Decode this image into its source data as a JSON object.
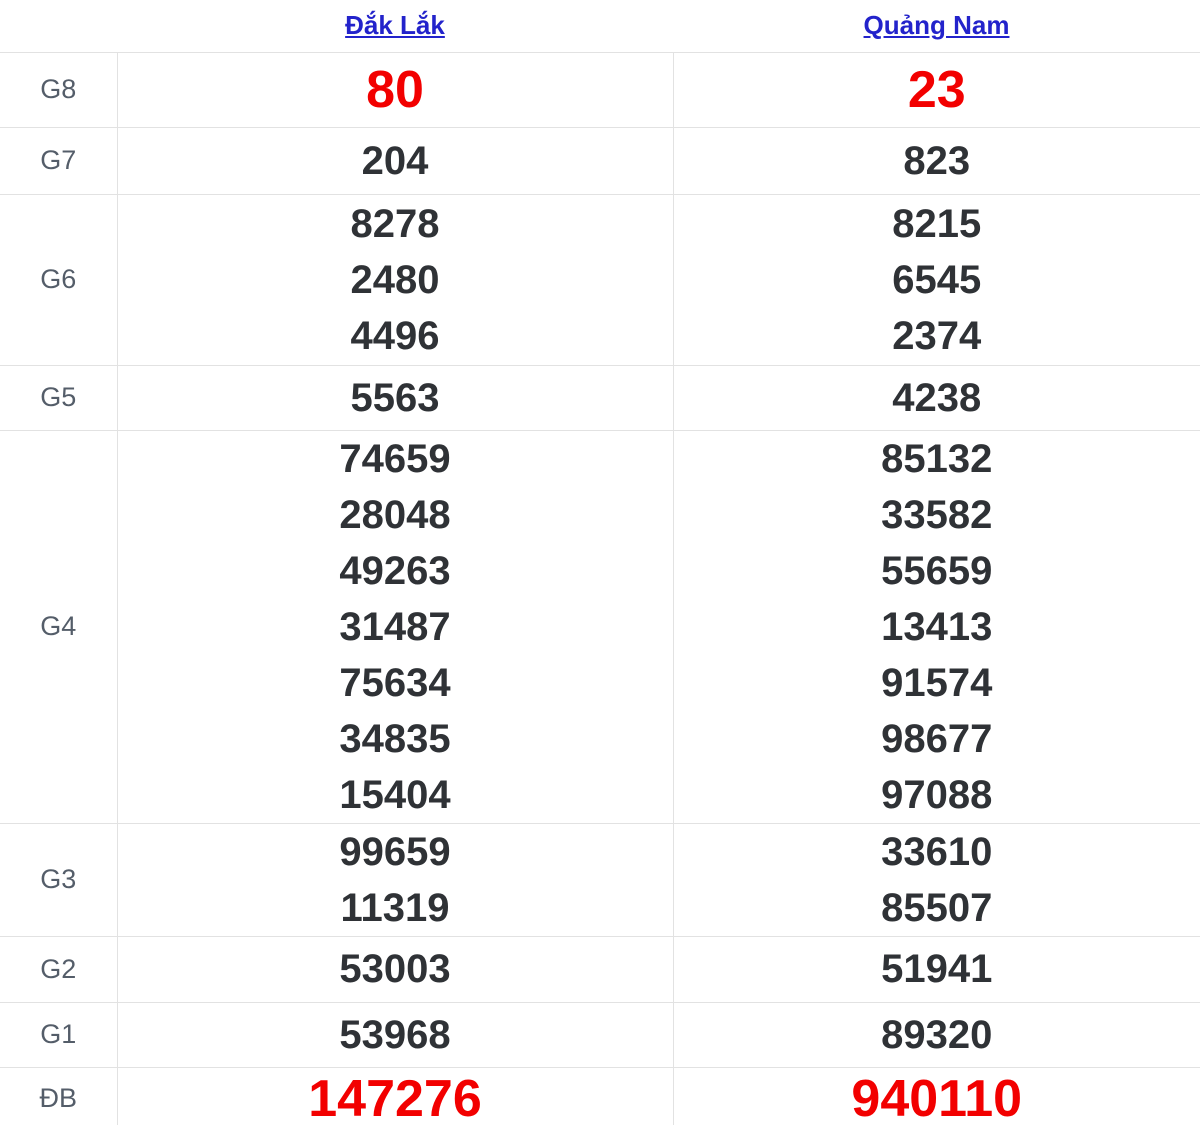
{
  "table": {
    "columns": [
      {
        "id": "dak-lak",
        "label": "Đắk Lắk"
      },
      {
        "id": "quang-nam",
        "label": "Quảng Nam"
      }
    ],
    "rows": [
      {
        "prize": "G8",
        "highlight": true,
        "values": [
          [
            "80"
          ],
          [
            "23"
          ]
        ]
      },
      {
        "prize": "G7",
        "highlight": false,
        "values": [
          [
            "204"
          ],
          [
            "823"
          ]
        ]
      },
      {
        "prize": "G6",
        "highlight": false,
        "values": [
          [
            "8278",
            "2480",
            "4496"
          ],
          [
            "8215",
            "6545",
            "2374"
          ]
        ]
      },
      {
        "prize": "G5",
        "highlight": false,
        "values": [
          [
            "5563"
          ],
          [
            "4238"
          ]
        ]
      },
      {
        "prize": "G4",
        "highlight": false,
        "values": [
          [
            "74659",
            "28048",
            "49263",
            "31487",
            "75634",
            "34835",
            "15404"
          ],
          [
            "85132",
            "33582",
            "55659",
            "13413",
            "91574",
            "98677",
            "97088"
          ]
        ]
      },
      {
        "prize": "G3",
        "highlight": false,
        "values": [
          [
            "99659",
            "11319"
          ],
          [
            "33610",
            "85507"
          ]
        ]
      },
      {
        "prize": "G2",
        "highlight": false,
        "values": [
          [
            "53003"
          ],
          [
            "51941"
          ]
        ]
      },
      {
        "prize": "G1",
        "highlight": false,
        "values": [
          [
            "53968"
          ],
          [
            "89320"
          ]
        ]
      },
      {
        "prize": "ĐB",
        "highlight": true,
        "values": [
          [
            "147276"
          ],
          [
            "940110"
          ]
        ]
      }
    ],
    "colors": {
      "highlight": "#f20000",
      "number": "#2f3236",
      "link": "#2323cb",
      "label": "#545d69",
      "border": "#e2e2e2"
    }
  }
}
